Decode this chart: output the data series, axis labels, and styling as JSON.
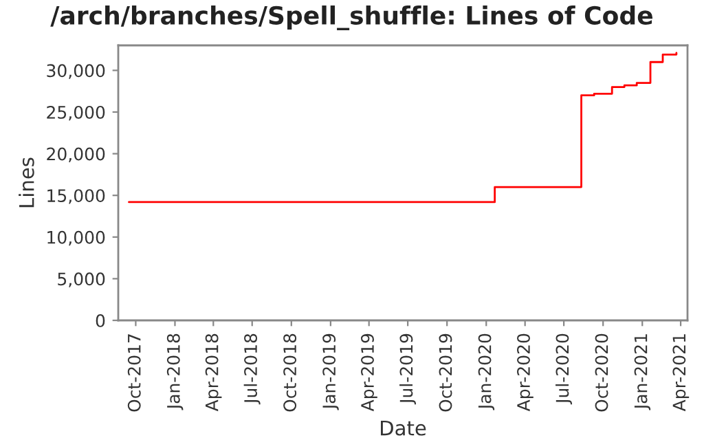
{
  "chart_data": {
    "type": "step",
    "title": "/arch/branches/Spell_shuffle: Lines of Code",
    "xlabel": "Date",
    "ylabel": "Lines",
    "x": [
      "2017-09-15",
      "2020-01-21",
      "2020-08-11",
      "2020-09-10",
      "2020-10-22",
      "2020-11-20",
      "2020-12-19",
      "2021-01-20",
      "2021-02-18",
      "2021-03-22"
    ],
    "series": [
      {
        "color": "#ff0000",
        "values": [
          14200,
          16000,
          27000,
          27200,
          28000,
          28200,
          28500,
          31000,
          31900,
          32100
        ]
      }
    ],
    "xlim": [
      "2017-08-21",
      "2021-04-17"
    ],
    "ylim": [
      0,
      33000
    ],
    "xticks": [
      {
        "value": "2017-10-01",
        "label": "Oct-2017"
      },
      {
        "value": "2018-01-01",
        "label": "Jan-2018"
      },
      {
        "value": "2018-04-01",
        "label": "Apr-2018"
      },
      {
        "value": "2018-07-01",
        "label": "Jul-2018"
      },
      {
        "value": "2018-10-01",
        "label": "Oct-2018"
      },
      {
        "value": "2019-01-01",
        "label": "Jan-2019"
      },
      {
        "value": "2019-04-01",
        "label": "Apr-2019"
      },
      {
        "value": "2019-07-01",
        "label": "Jul-2019"
      },
      {
        "value": "2019-10-01",
        "label": "Oct-2019"
      },
      {
        "value": "2020-01-01",
        "label": "Jan-2020"
      },
      {
        "value": "2020-04-01",
        "label": "Apr-2020"
      },
      {
        "value": "2020-07-01",
        "label": "Jul-2020"
      },
      {
        "value": "2020-10-01",
        "label": "Oct-2020"
      },
      {
        "value": "2021-01-01",
        "label": "Jan-2021"
      },
      {
        "value": "2021-04-01",
        "label": "Apr-2021"
      }
    ],
    "yticks": [
      {
        "value": 0,
        "label": "0"
      },
      {
        "value": 5000,
        "label": "5,000"
      },
      {
        "value": 10000,
        "label": "10,000"
      },
      {
        "value": 15000,
        "label": "15,000"
      },
      {
        "value": 20000,
        "label": "20,000"
      },
      {
        "value": 25000,
        "label": "25,000"
      },
      {
        "value": 30000,
        "label": "30,000"
      }
    ],
    "grid": false,
    "legend": false
  }
}
